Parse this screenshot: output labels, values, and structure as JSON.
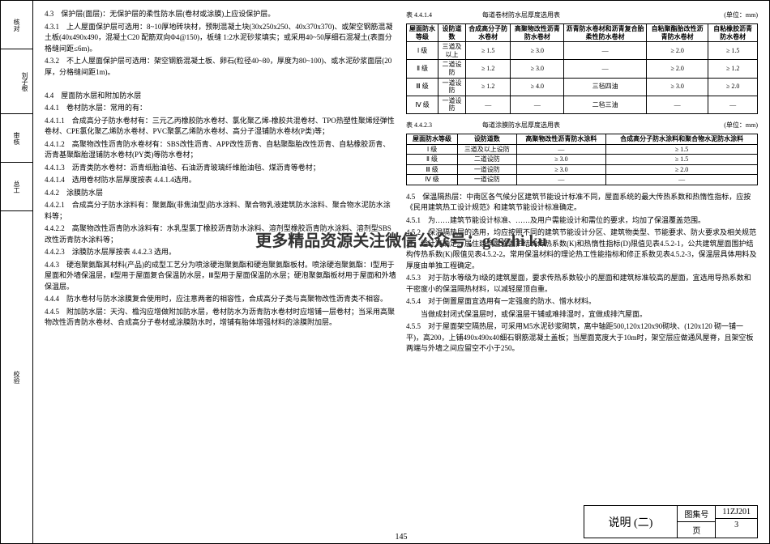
{
  "sideTabs": [
    "核对",
    "刘子根",
    "审核",
    "总工",
    "校验"
  ],
  "leftColumn": {
    "p43": "4.3　保护层(面层)：无保护层的柔性防水层(卷材或涂膜)上应设保护层。",
    "p431": "4.3.1　上人屋面保护层可选用：8~10厚地砖块材，预制混凝土块(30x250x250、40x370x370)、或架空钢筋混凝土板(40x490x490，混凝土C20 配筋双向Φ4@150)，板缝 1:2水泥砂浆填实；或采用40~50厚细石混凝土(表面分格缝间距≤6m)。",
    "p432": "4.3.2　不上人屋面保护层可选用：架空钢筋混凝土板、卵石(粒径40~80，厚度为80~100)、或水泥砂浆面层(20厚，分格缝间距1m)。",
    "p44": "4.4　屋面防水层和附加防水层",
    "p441": "4.4.1　卷材防水层：常用的有：",
    "p4411": "4.4.1.1　合成高分子防水卷材有：三元乙丙橡胶防水卷材、氯化聚乙烯-橡胶共混卷材、TPO热塑性聚烯烃弹性卷材、CPE氯化聚乙烯防水卷材、PVC聚氯乙烯防水卷材、高分子湿铺防水卷材(P类)等；",
    "p4412": "4.4.1.2　高聚物改性沥青防水卷材有：SBS改性沥青、APP改性沥青、自粘聚酯胎改性沥青、自粘橡胶沥青、沥青基聚酯胎湿铺防水卷材(PY类)等防水卷材；",
    "p4413": "4.4.1.3　沥青类防水卷材：沥青纸胎油毡、石油沥青玻璃纤维胎油毡、煤沥青等卷材；",
    "p4414": "4.4.1.4　选用卷材防水层厚度按表 4.4.1.4选用。",
    "p442": "4.4.2　涂膜防水层",
    "p4421": "4.4.2.1　合成高分子防水涂料有：聚氨酯(非焦油型)防水涂料、聚合物乳液建筑防水涂料、聚合物水泥防水涂料等；",
    "p4422": "4.4.2.2　高聚物改性沥青防水涂料有：水乳型氯丁橡胶沥青防水涂料、溶剂型橡胶沥青防水涂料、溶剂型SBS改性沥青防水涂料等；",
    "p4423": "4.4.2.3　涂膜防水层厚按表 4.4.2.3 选用。",
    "p443": "4.4.3　硬泡聚氨酯其材料(产品)的成型工艺分为喷涂硬泡聚氨酯和硬泡聚氨酯板材。喷涂硬泡聚氨酯：Ⅰ型用于屋面和外墙保温层，Ⅱ型用于屋面复合保温防水层，Ⅲ型用于屋面保温防水层；硬泡聚氨酯板材用于屋面和外墙保温层。",
    "p444": "4.4.4　防水卷材与防水涂膜复合使用时，应注意两者的相容性，合成高分子类与高聚物改性沥青类不相容。",
    "p445": "4.4.5　附加防水层：天沟、檐沟应增做附加防水层，卷材防水为沥青防水卷材时应增铺一层卷材；当采用高聚物改性沥青防水卷材、合成高分子卷材或涂膜防水时，增铺有胎体增强材料的涂膜附加层。"
  },
  "table1": {
    "title": "每道卷材防水层厚度选用表",
    "num": "表 4.4.1.4",
    "unit": "(单位：mm)",
    "headers": [
      "屋面防水等级",
      "设防道数",
      "合成高分子防水卷材",
      "高聚物改性沥青防水卷材",
      "沥青防水卷材和沥青复合胎柔性防水卷材",
      "自粘聚酯胎改性沥青防水卷材",
      "自粘橡胶沥青防水卷材"
    ],
    "rows": [
      [
        "Ⅰ 级",
        "三道及以上",
        "≥ 1.5",
        "≥ 3.0",
        "—",
        "≥ 2.0",
        "≥ 1.5"
      ],
      [
        "Ⅱ 级",
        "二道设防",
        "≥ 1.2",
        "≥ 3.0",
        "—",
        "≥ 2.0",
        "≥ 1.2"
      ],
      [
        "Ⅲ 级",
        "一道设防",
        "≥ 1.2",
        "≥ 4.0",
        "三毡四油",
        "≥ 3.0",
        "≥ 2.0"
      ],
      [
        "Ⅳ 级",
        "一道设防",
        "—",
        "—",
        "二毡三油",
        "—",
        "—"
      ]
    ]
  },
  "table2": {
    "title": "每道涂膜防水层厚度选用表",
    "num": "表 4.4.2.3",
    "unit": "(单位：mm)",
    "headers": [
      "屋面防水等级",
      "设防道数",
      "高聚物改性沥青防水涂料",
      "合成高分子防水涂料和聚合物水泥防水涂料"
    ],
    "rows": [
      [
        "Ⅰ 级",
        "三道及以上设防",
        "—",
        "≥ 1.5"
      ],
      [
        "Ⅱ 级",
        "二道设防",
        "≥ 3.0",
        "≥ 1.5"
      ],
      [
        "Ⅲ 级",
        "一道设防",
        "≥ 3.0",
        "≥ 2.0"
      ],
      [
        "Ⅳ 级",
        "一道设防",
        "—",
        "—"
      ]
    ]
  },
  "rightColumn": {
    "p45": "4.5　保温隔热层：中南区各气候分区建筑节能设计标准不同，屋面系统的最大传热系数和热惰性指标，应按《民用建筑热工设计规范》和建筑节能设计标准确定。",
    "p451": "4.5.1　为……建筑节能设计标准、……及用户需能设计和需位的要求，均加了保温覆盖范围。",
    "p452": "4.5.2　保温隔热层的选用，均应按照不同的建筑节能设计分区、建筑物类型、节能要求、防火要求及相关规范准、经计算确定。居住建筑屋面围护结构传热系数(K)和热惰性指标(D)限值见表4.5.2-1，公共建筑屋面围护结构传热系数(K)限值见表4.5.2-2。常用保温材料的理论热工性能指标和修正系数见表4.5.2-3，保温层具体用料及厚度由单独工程确定。",
    "p453": "4.5.3　对于防水等级为Ⅰ级的建筑屋面，要求传热系数较小的屋面和建筑标准较高的屋面，宜选用导热系数和干密度小的保温隔热材料，以减轻屋顶自重。",
    "p454a": "4.5.4　对于倒置屋面宜选用有一定强度的防水、憎水材料。",
    "p454b": "当做成封闭式保温层时，或保温层干铺或难排湿时，宜做成排汽屋面。",
    "p455": "4.5.5　对于屋面架空隔热层，可采用M5水泥砂浆砌筑，离中轴距500,120x120x90砌块、(120x120 砌一铺一平)，高200，上铺490x490x40细石钢筋混凝土盖板；当屋面宽度大于10m时，架空层应做通风屋脊，且架空板两端与外墙之间应留空不小于250。"
  },
  "watermark": "更多精品资源关注微信公众号：gcszhi ku",
  "footer": {
    "title": "说明 (二)",
    "bookLabel": "图集号",
    "book": "11ZJ201",
    "pageLabel": "页",
    "page": "3"
  },
  "pageNumBottom": "145"
}
